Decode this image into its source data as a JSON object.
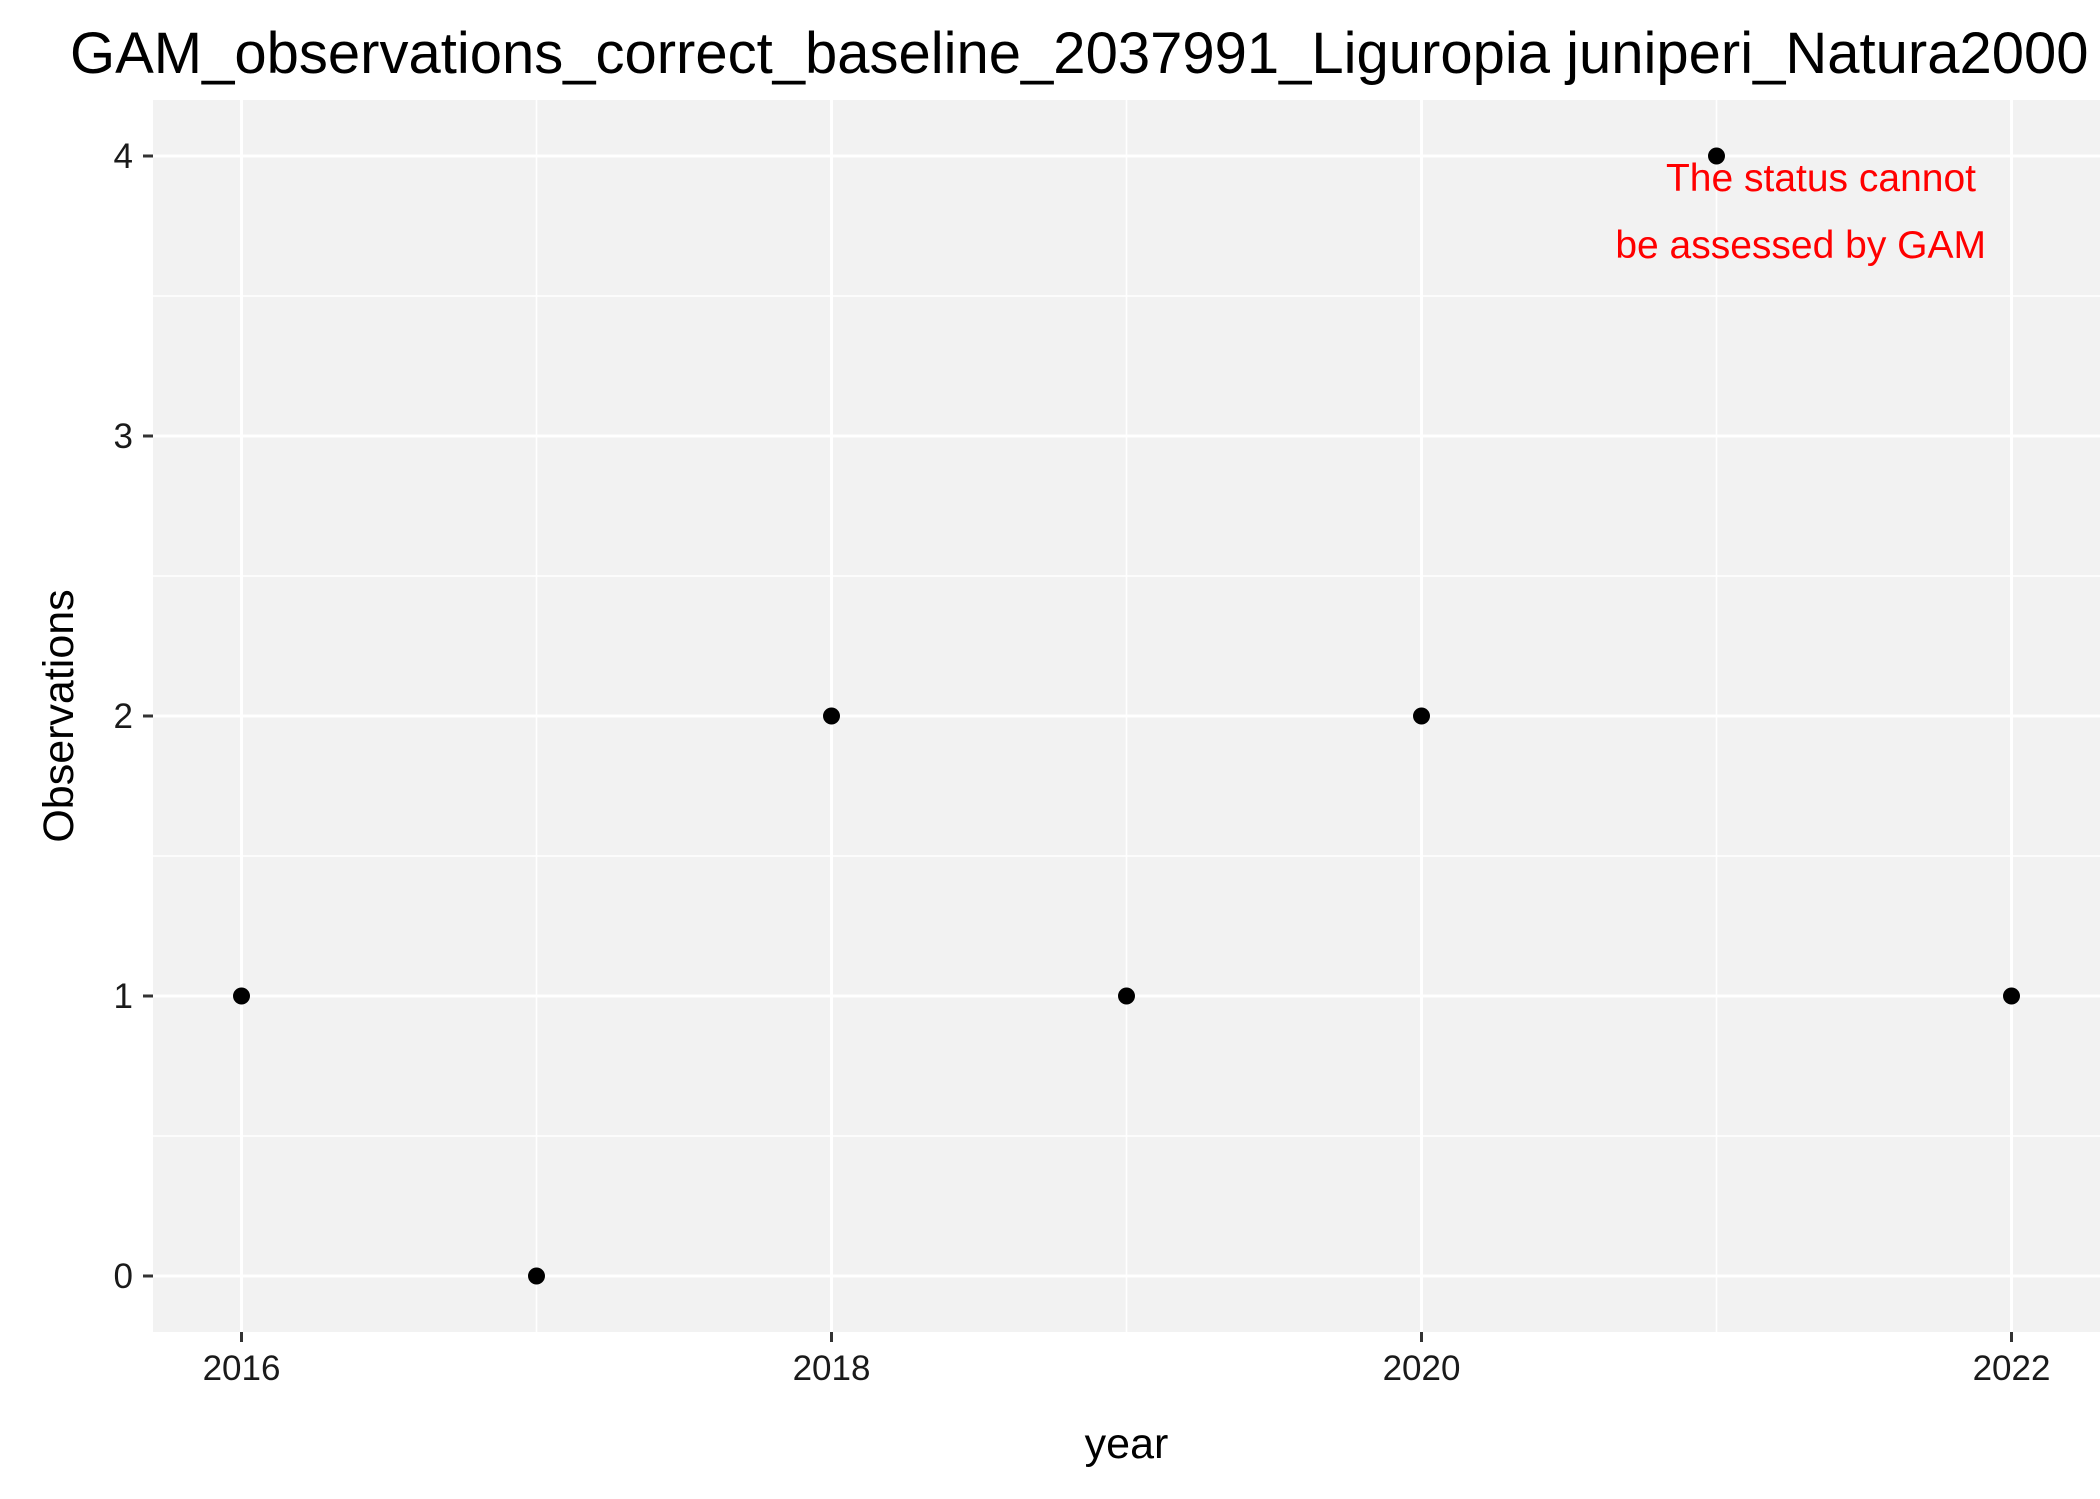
{
  "chart_data": {
    "type": "scatter",
    "title": "GAM_observations_correct_baseline_2037991_Liguropia juniperi_Natura2000",
    "xlabel": "year",
    "ylabel": "Observations",
    "x": [
      2016,
      2017,
      2018,
      2019,
      2020,
      2021,
      2022
    ],
    "y": [
      1,
      0,
      2,
      1,
      2,
      4,
      1
    ],
    "xlim": [
      2015.7,
      2022.3
    ],
    "ylim": [
      -0.2,
      4.2
    ],
    "x_ticks": [
      2016,
      2018,
      2020,
      2022
    ],
    "x_tick_labels": [
      "2016",
      "2018",
      "2020",
      "2022"
    ],
    "x_minor_ticks": [
      2017,
      2019,
      2021
    ],
    "y_ticks": [
      0,
      1,
      2,
      3,
      4
    ],
    "y_tick_labels": [
      "0",
      "1",
      "2",
      "3",
      "4"
    ],
    "y_minor_ticks": [
      0.5,
      1.5,
      2.5,
      3.5
    ],
    "grid": true,
    "annotation": {
      "lines": [
        "The status cannot",
        "be assessed by GAM"
      ],
      "color": "#ff0000"
    },
    "colors": {
      "panel_background": "#f2f2f2",
      "grid": "#ffffff",
      "points": "#000000"
    }
  }
}
